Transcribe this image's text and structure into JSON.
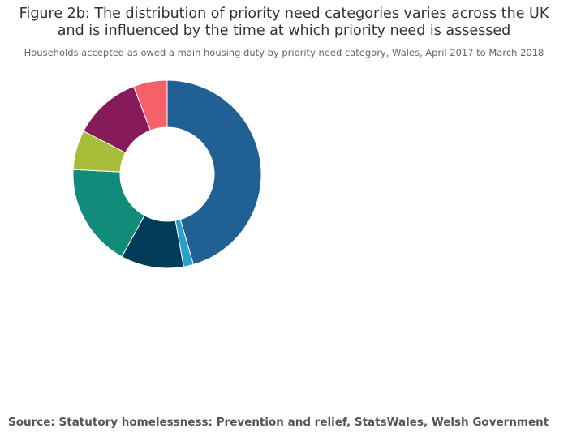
{
  "title_line1": "Figure 2b: The distribution of priority need categories varies across the UK",
  "title_line2": "and is influenced by the time at which priority need is assessed",
  "subtitle": "Households accepted as owed a main housing duty by priority need category, Wales, April 2017 to March 2018",
  "source": "Source: Statutory homelessness: Prevention and relief, StatsWales, Welsh Government",
  "chart_data": {
    "type": "pie",
    "hole": 0.5,
    "start_angle_deg": 0,
    "direction": "clockwise",
    "slices": [
      {
        "value": 45.5,
        "color": "#206095"
      },
      {
        "value": 1.7,
        "color": "#27A0CC"
      },
      {
        "value": 10.8,
        "color": "#003C57"
      },
      {
        "value": 17.8,
        "color": "#118C7B"
      },
      {
        "value": 6.8,
        "color": "#A8BD3A"
      },
      {
        "value": 11.6,
        "color": "#871A5B"
      },
      {
        "value": 5.8,
        "color": "#F66068"
      }
    ]
  }
}
